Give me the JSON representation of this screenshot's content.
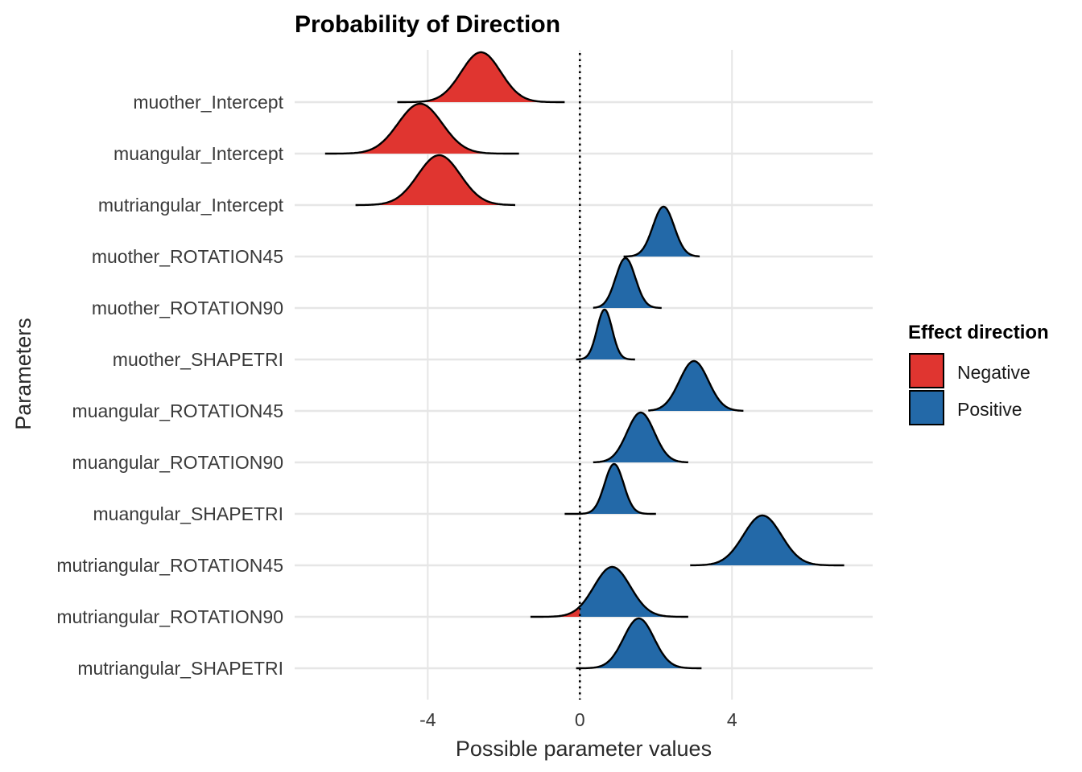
{
  "chart_data": {
    "type": "ridgeline",
    "title": "Probability of Direction",
    "xlabel": "Possible parameter values",
    "ylabel": "Parameters",
    "xlim": [
      -7.5,
      7.7
    ],
    "x_ticks": [
      -4,
      0,
      4
    ],
    "x_tick_labels": [
      "-4",
      "0",
      "4"
    ],
    "reference_line_x": 0,
    "grid": true,
    "legend": {
      "title": "Effect direction",
      "position": "right",
      "entries": [
        {
          "label": "Negative",
          "color": "#e03530"
        },
        {
          "label": "Positive",
          "color": "#2369a8"
        }
      ]
    },
    "series": [
      {
        "name": "muother_Intercept",
        "mean": -2.6,
        "sd": 0.52,
        "min": -4.8,
        "max": -0.4
      },
      {
        "name": "muangular_Intercept",
        "mean": -4.2,
        "sd": 0.58,
        "min": -6.7,
        "max": -1.6
      },
      {
        "name": "mutriangular_Intercept",
        "mean": -3.7,
        "sd": 0.56,
        "min": -5.9,
        "max": -1.7
      },
      {
        "name": "muother_ROTATION45",
        "mean": 2.2,
        "sd": 0.28,
        "min": 1.15,
        "max": 3.15
      },
      {
        "name": "muother_ROTATION90",
        "mean": 1.2,
        "sd": 0.26,
        "min": 0.35,
        "max": 2.15
      },
      {
        "name": "muother_SHAPETRI",
        "mean": 0.65,
        "sd": 0.2,
        "min": -0.1,
        "max": 1.45
      },
      {
        "name": "muangular_ROTATION45",
        "mean": 3.0,
        "sd": 0.38,
        "min": 1.8,
        "max": 4.3
      },
      {
        "name": "muangular_ROTATION90",
        "mean": 1.6,
        "sd": 0.36,
        "min": 0.35,
        "max": 2.85
      },
      {
        "name": "muangular_SHAPETRI",
        "mean": 0.9,
        "sd": 0.25,
        "min": -0.4,
        "max": 2.0
      },
      {
        "name": "mutriangular_ROTATION45",
        "mean": 4.8,
        "sd": 0.5,
        "min": 2.9,
        "max": 6.95
      },
      {
        "name": "mutriangular_ROTATION90",
        "mean": 0.85,
        "sd": 0.48,
        "min": -1.3,
        "max": 2.85
      },
      {
        "name": "mutriangular_SHAPETRI",
        "mean": 1.55,
        "sd": 0.4,
        "min": -0.1,
        "max": 3.2
      }
    ]
  }
}
